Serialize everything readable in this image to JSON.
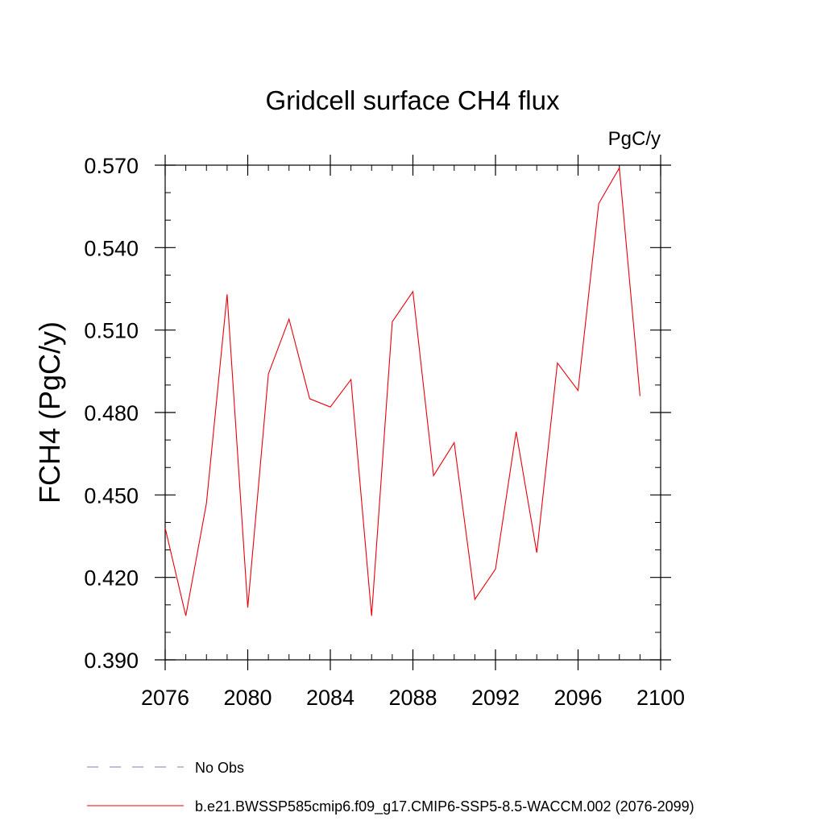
{
  "chart_data": {
    "type": "line",
    "title": "Gridcell surface CH4 flux",
    "units_label": "PgC/y",
    "ylabel": "FCH4  (PgC/y)",
    "xlabel": "",
    "xlim": [
      2076,
      2100
    ],
    "ylim": [
      0.39,
      0.57
    ],
    "x_ticks": [
      2076,
      2080,
      2084,
      2088,
      2092,
      2096,
      2100
    ],
    "x_tick_labels": [
      "2076",
      "2080",
      "2084",
      "2088",
      "2092",
      "2096",
      "2100"
    ],
    "y_ticks": [
      0.39,
      0.42,
      0.45,
      0.48,
      0.51,
      0.54,
      0.57
    ],
    "y_tick_labels": [
      "0.390",
      "0.420",
      "0.450",
      "0.480",
      "0.510",
      "0.540",
      "0.570"
    ],
    "x_minor_step": 1,
    "y_minor_step": 0.01,
    "grid": false,
    "legend_position": "bottom",
    "series": [
      {
        "name": "b.e21.BWSSP585cmip6.f09_g17.CMIP6-SSP5-8.5-WACCM.002 (2076-2099)",
        "color": "#e8000b",
        "style": "solid",
        "x": [
          2076,
          2077,
          2078,
          2079,
          2080,
          2081,
          2082,
          2083,
          2084,
          2085,
          2086,
          2087,
          2088,
          2089,
          2090,
          2091,
          2092,
          2093,
          2094,
          2095,
          2096,
          2097,
          2098,
          2099
        ],
        "values": [
          0.438,
          0.406,
          0.447,
          0.523,
          0.409,
          0.494,
          0.514,
          0.485,
          0.482,
          0.492,
          0.406,
          0.513,
          0.524,
          0.457,
          0.469,
          0.412,
          0.423,
          0.473,
          0.429,
          0.498,
          0.488,
          0.556,
          0.569,
          0.486
        ]
      }
    ],
    "legend": [
      {
        "label": "No Obs",
        "color": "#7f7fb8",
        "style": "dashed"
      },
      {
        "label": "b.e21.BWSSP585cmip6.f09_g17.CMIP6-SSP5-8.5-WACCM.002 (2076-2099)",
        "color": "#e8000b",
        "style": "solid"
      }
    ]
  }
}
